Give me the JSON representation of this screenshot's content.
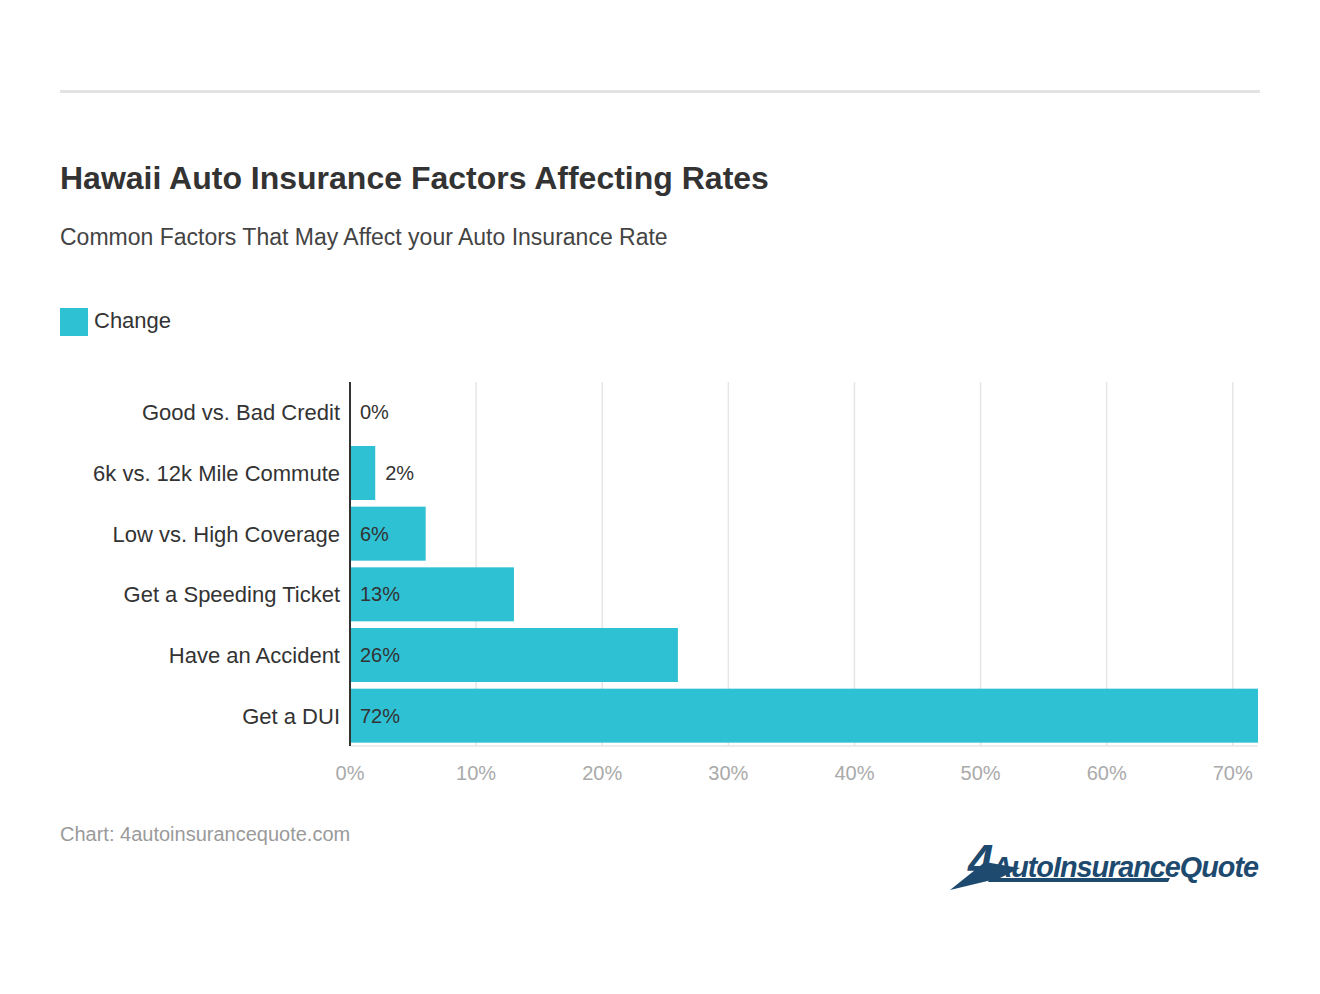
{
  "chart_data": {
    "type": "bar",
    "orientation": "horizontal",
    "title": "Hawaii Auto Insurance Factors Affecting Rates",
    "subtitle": "Common Factors That May Affect your Auto Insurance Rate",
    "source": "Chart: 4autoinsurancequote.com",
    "logo": "4AutoInsuranceQuote",
    "categories": [
      "Good vs. Bad Credit",
      "6k vs. 12k Mile Commute",
      "Low vs. High Coverage",
      "Get a Speeding Ticket",
      "Have an Accident",
      "Get a DUI"
    ],
    "series": [
      {
        "name": "Change",
        "color": "#2ec0d3",
        "values": [
          0,
          2,
          6,
          13,
          26,
          72
        ],
        "value_labels": [
          "0%",
          "2%",
          "6%",
          "13%",
          "26%",
          "72%"
        ]
      }
    ],
    "xlim": [
      0,
      72
    ],
    "xticks": [
      {
        "value": 0,
        "label": "0%"
      },
      {
        "value": 10,
        "label": "10%"
      },
      {
        "value": 20,
        "label": "20%"
      },
      {
        "value": 30,
        "label": "30%"
      },
      {
        "value": 40,
        "label": "40%"
      },
      {
        "value": 50,
        "label": "50%"
      },
      {
        "value": 60,
        "label": "60%"
      },
      {
        "value": 70,
        "label": "70%"
      }
    ],
    "grid": true,
    "legend": "top-left",
    "data_labels": true
  }
}
